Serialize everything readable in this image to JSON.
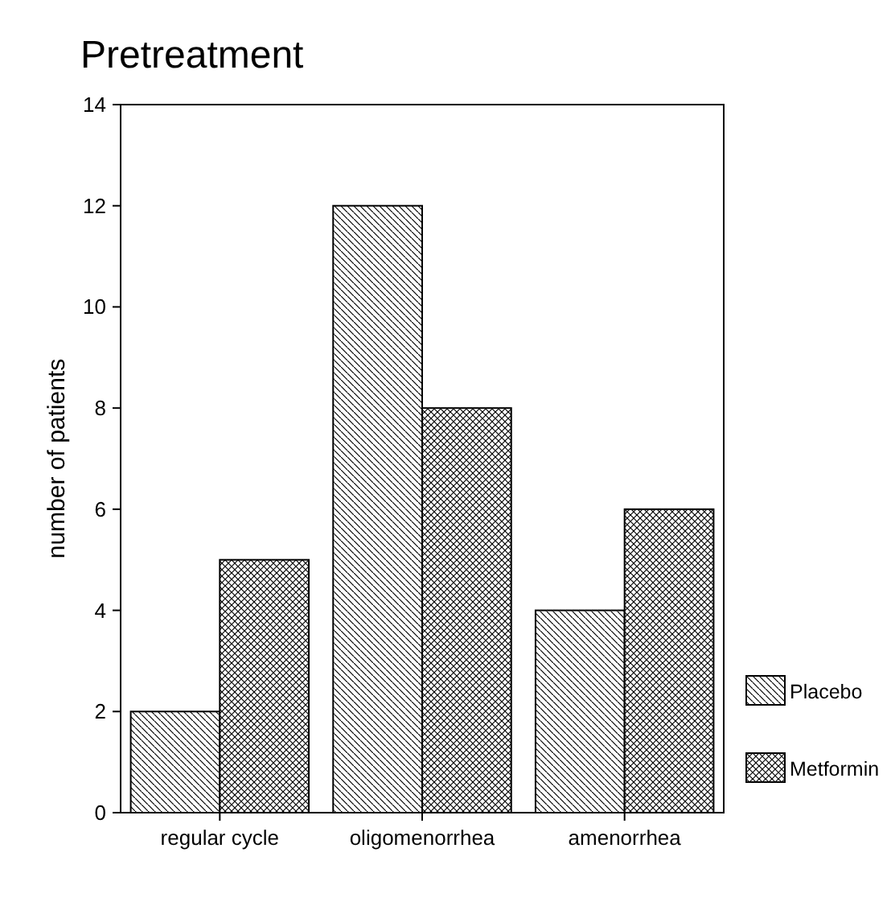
{
  "chart_data": {
    "type": "bar",
    "title": "Pretreatment",
    "ylabel": "number of patients",
    "categories": [
      "regular cycle",
      "oligomenorrhea",
      "amenorrhea"
    ],
    "series": [
      {
        "name": "Placebo",
        "color": "#000000",
        "values": [
          2,
          12,
          4
        ]
      },
      {
        "name": "Metformin",
        "color": "#000000",
        "values": [
          5,
          8,
          6
        ]
      }
    ],
    "ylim": [
      0,
      14
    ],
    "yticks": [
      0,
      2,
      4,
      6,
      8,
      10,
      12,
      14
    ],
    "grid": false,
    "legend": "bottom right"
  }
}
